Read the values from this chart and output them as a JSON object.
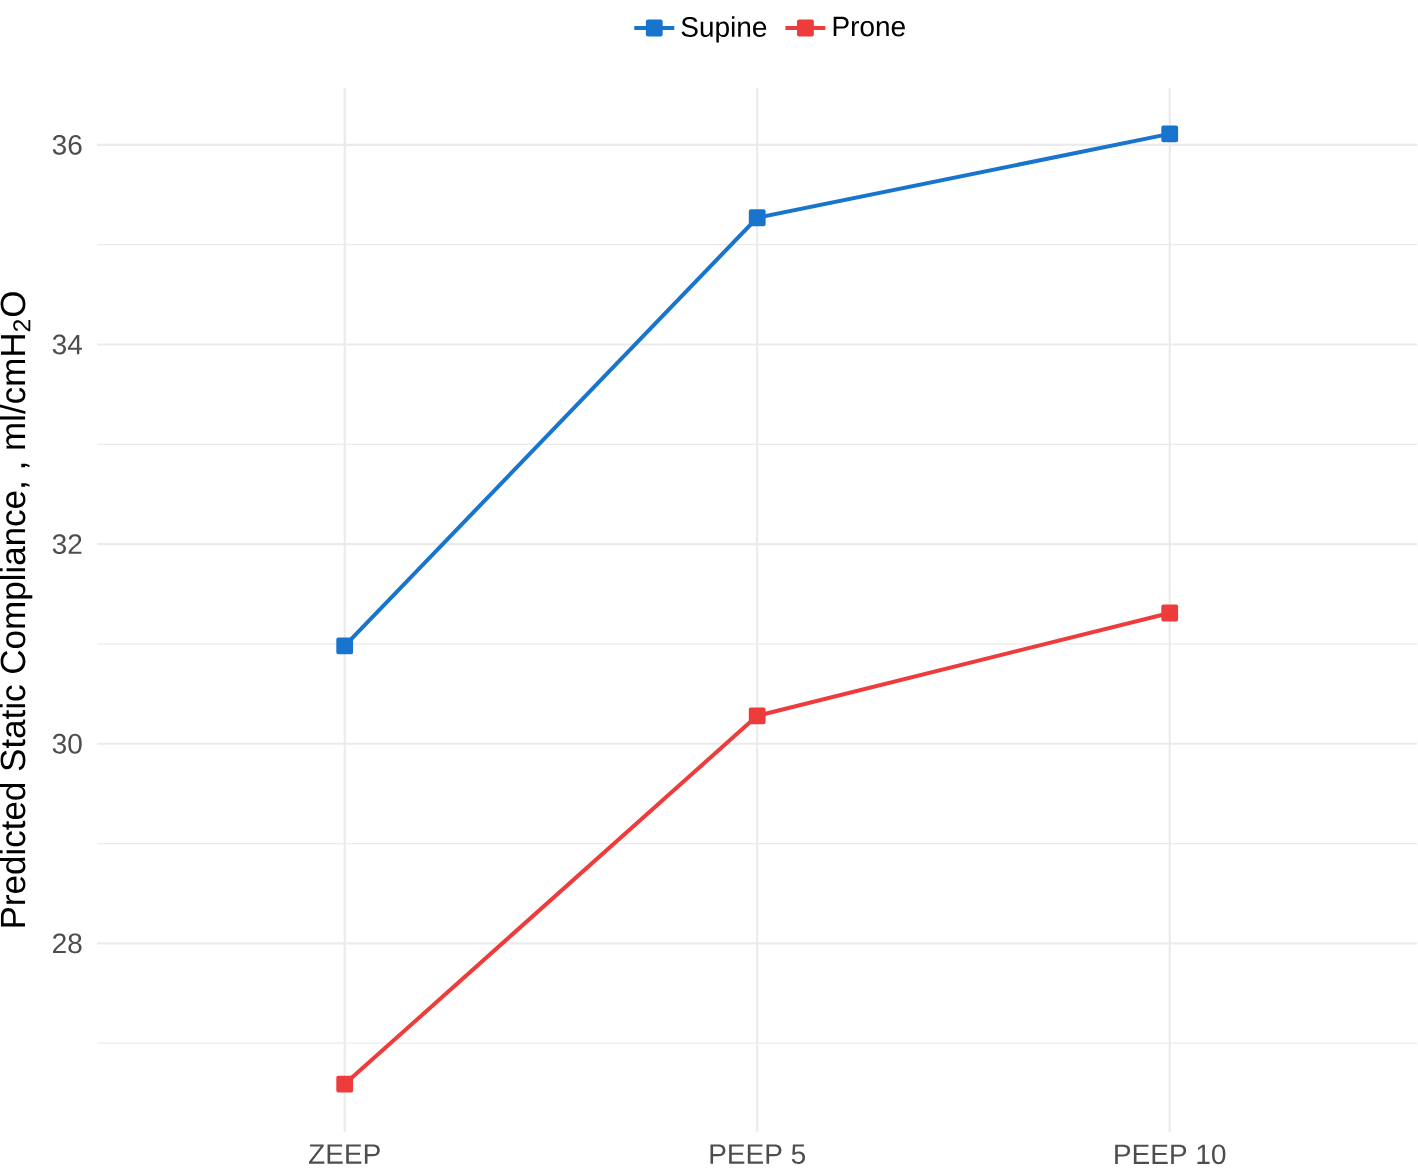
{
  "chart_data": {
    "type": "line",
    "ylabel": "Predicted Static Compliance, , ml/cmH$_{2}$O",
    "categories": [
      "ZEEP",
      "PEEP 5",
      "PEEP 10"
    ],
    "series": [
      {
        "name": "Supine",
        "color": "#1874cd",
        "values": [
          30.98,
          35.27,
          36.11
        ]
      },
      {
        "name": "Prone",
        "color": "#ee3b3b",
        "values": [
          26.59,
          30.28,
          31.31
        ]
      }
    ],
    "ylim": [
      26.11,
      36.57
    ],
    "yticks": [
      {
        "value": 27,
        "label": null
      },
      28,
      {
        "value": 29,
        "label": null
      },
      30,
      {
        "value": 31,
        "label": null
      },
      32,
      {
        "value": 33,
        "label": null
      },
      34,
      {
        "value": 35,
        "label": null
      },
      36
    ],
    "grid": true,
    "legend": "top",
    "marker": "square",
    "line_style": "solid"
  }
}
